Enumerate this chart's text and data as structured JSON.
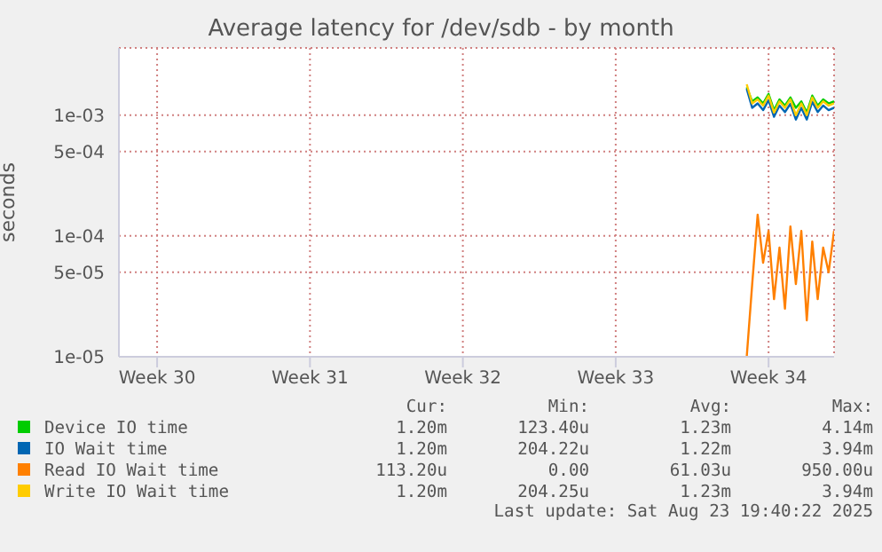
{
  "chart_data": {
    "type": "line",
    "title": "Average latency for /dev/sdb - by month",
    "ylabel": "seconds",
    "categories": [
      null,
      null,
      null,
      null,
      null,
      null,
      null,
      "Week 30",
      null,
      null,
      null,
      null,
      null,
      null,
      null,
      null,
      null,
      null,
      null,
      null,
      null,
      null,
      null,
      null,
      null,
      null,
      null,
      null,
      null,
      null,
      null,
      null,
      null,
      null,
      null,
      "Week 31",
      null,
      null,
      null,
      null,
      null,
      null,
      null,
      null,
      null,
      null,
      null,
      null,
      null,
      null,
      null,
      null,
      null,
      null,
      null,
      null,
      null,
      null,
      null,
      null,
      null,
      null,
      null,
      "Week 32",
      null,
      null,
      null,
      null,
      null,
      null,
      null,
      null,
      null,
      null,
      null,
      null,
      null,
      null,
      null,
      null,
      null,
      null,
      null,
      null,
      null,
      null,
      null,
      null,
      null,
      null,
      null,
      "Week 33",
      null,
      null,
      null,
      null,
      null,
      null,
      null,
      null,
      null,
      null,
      null,
      null,
      null,
      null,
      null,
      null,
      null,
      null,
      null,
      null,
      null,
      null,
      null,
      null,
      null,
      null,
      null,
      "Week 34",
      null,
      null,
      null,
      null,
      null,
      null,
      null,
      null,
      null,
      null,
      null,
      null
    ],
    "series": [
      {
        "name": "Device IO time",
        "color": "#00cc00",
        "values": [
          null,
          null,
          null,
          null,
          null,
          null,
          null,
          null,
          null,
          null,
          null,
          null,
          null,
          null,
          null,
          null,
          null,
          null,
          null,
          null,
          null,
          null,
          null,
          null,
          null,
          null,
          null,
          null,
          null,
          null,
          null,
          null,
          null,
          null,
          null,
          null,
          null,
          null,
          null,
          null,
          null,
          null,
          null,
          null,
          null,
          null,
          null,
          null,
          null,
          null,
          null,
          null,
          null,
          null,
          null,
          null,
          null,
          null,
          null,
          null,
          null,
          null,
          null,
          null,
          null,
          null,
          null,
          null,
          null,
          null,
          null,
          null,
          null,
          null,
          null,
          null,
          null,
          null,
          null,
          null,
          null,
          null,
          null,
          null,
          null,
          null,
          null,
          null,
          null,
          null,
          null,
          null,
          null,
          null,
          null,
          null,
          null,
          null,
          null,
          null,
          null,
          null,
          null,
          null,
          null,
          null,
          null,
          null,
          null,
          null,
          null,
          null,
          null,
          null,
          null,
          0.0017,
          0.0013,
          0.0014,
          0.00125,
          0.0015,
          0.0011,
          0.00135,
          0.0012,
          0.0014,
          0.00115,
          0.0013,
          0.00105,
          0.00145,
          0.0012,
          0.00135,
          0.00125,
          0.0013
        ]
      },
      {
        "name": "IO Wait time",
        "color": "#0066b3",
        "values": [
          null,
          null,
          null,
          null,
          null,
          null,
          null,
          null,
          null,
          null,
          null,
          null,
          null,
          null,
          null,
          null,
          null,
          null,
          null,
          null,
          null,
          null,
          null,
          null,
          null,
          null,
          null,
          null,
          null,
          null,
          null,
          null,
          null,
          null,
          null,
          null,
          null,
          null,
          null,
          null,
          null,
          null,
          null,
          null,
          null,
          null,
          null,
          null,
          null,
          null,
          null,
          null,
          null,
          null,
          null,
          null,
          null,
          null,
          null,
          null,
          null,
          null,
          null,
          null,
          null,
          null,
          null,
          null,
          null,
          null,
          null,
          null,
          null,
          null,
          null,
          null,
          null,
          null,
          null,
          null,
          null,
          null,
          null,
          null,
          null,
          null,
          null,
          null,
          null,
          null,
          null,
          null,
          null,
          null,
          null,
          null,
          null,
          null,
          null,
          null,
          null,
          null,
          null,
          null,
          null,
          null,
          null,
          null,
          null,
          null,
          null,
          null,
          null,
          null,
          null,
          0.00165,
          0.00115,
          0.00125,
          0.0011,
          0.00133,
          0.00097,
          0.0012,
          0.00106,
          0.00124,
          0.00092,
          0.00115,
          0.00092,
          0.00129,
          0.00106,
          0.0012,
          0.0011,
          0.00115
        ]
      },
      {
        "name": "Read IO Wait time",
        "color": "#ff8000",
        "values": [
          null,
          null,
          null,
          null,
          null,
          null,
          null,
          null,
          null,
          null,
          null,
          null,
          null,
          null,
          null,
          null,
          null,
          null,
          null,
          null,
          null,
          null,
          null,
          null,
          null,
          null,
          null,
          null,
          null,
          null,
          null,
          null,
          null,
          null,
          null,
          null,
          null,
          null,
          null,
          null,
          null,
          null,
          null,
          null,
          null,
          null,
          null,
          null,
          null,
          null,
          null,
          null,
          null,
          null,
          null,
          null,
          null,
          null,
          null,
          null,
          null,
          null,
          null,
          null,
          null,
          null,
          null,
          null,
          null,
          null,
          null,
          null,
          null,
          null,
          null,
          null,
          null,
          null,
          null,
          null,
          null,
          null,
          null,
          null,
          null,
          null,
          null,
          null,
          null,
          null,
          null,
          null,
          null,
          null,
          null,
          null,
          null,
          null,
          null,
          null,
          null,
          null,
          null,
          null,
          null,
          null,
          null,
          null,
          null,
          null,
          null,
          null,
          null,
          null,
          null,
          1e-05,
          4e-05,
          0.00015,
          6e-05,
          0.00011,
          3e-05,
          8e-05,
          2.5e-05,
          0.00012,
          4e-05,
          0.00011,
          2e-05,
          9e-05,
          3e-05,
          8e-05,
          5e-05,
          0.00011
        ]
      },
      {
        "name": "Write IO Wait time",
        "color": "#ffcc00",
        "values": [
          null,
          null,
          null,
          null,
          null,
          null,
          null,
          null,
          null,
          null,
          null,
          null,
          null,
          null,
          null,
          null,
          null,
          null,
          null,
          null,
          null,
          null,
          null,
          null,
          null,
          null,
          null,
          null,
          null,
          null,
          null,
          null,
          null,
          null,
          null,
          null,
          null,
          null,
          null,
          null,
          null,
          null,
          null,
          null,
          null,
          null,
          null,
          null,
          null,
          null,
          null,
          null,
          null,
          null,
          null,
          null,
          null,
          null,
          null,
          null,
          null,
          null,
          null,
          null,
          null,
          null,
          null,
          null,
          null,
          null,
          null,
          null,
          null,
          null,
          null,
          null,
          null,
          null,
          null,
          null,
          null,
          null,
          null,
          null,
          null,
          null,
          null,
          null,
          null,
          null,
          null,
          null,
          null,
          null,
          null,
          null,
          null,
          null,
          null,
          null,
          null,
          null,
          null,
          null,
          null,
          null,
          null,
          null,
          null,
          null,
          null,
          null,
          null,
          null,
          null,
          0.0018,
          0.00125,
          0.00135,
          0.0012,
          0.00145,
          0.00105,
          0.0013,
          0.00115,
          0.00135,
          0.001,
          0.00125,
          0.001,
          0.0014,
          0.00115,
          0.0013,
          0.0012,
          0.00125
        ]
      }
    ],
    "ylim": [
      1e-05,
      0.0036
    ],
    "yticks": [
      {
        "value": 1e-05,
        "label": "1e-05"
      },
      {
        "value": 5e-05,
        "label": "5e-05"
      },
      {
        "value": 0.0001,
        "label": "1e-04"
      },
      {
        "value": 0.0005,
        "label": "5e-04"
      },
      {
        "value": 0.001,
        "label": "1e-03"
      }
    ],
    "log": "y",
    "grid": true,
    "legend": "bottom",
    "marker": "none",
    "line_style": "solid",
    "annotations": [
      "Cur:",
      "Min:",
      "Avg:",
      "Max:",
      "1.20m",
      "123.40u",
      "1.23m",
      "4.14m",
      "1.20m",
      "204.22u",
      "1.22m",
      "3.94m",
      "113.20u",
      "0.00",
      "61.03u",
      "950.00u",
      "1.20m",
      "204.25u",
      "1.23m",
      "3.94m",
      "Last update: Sat Aug 23 19:40:22 2025"
    ]
  }
}
